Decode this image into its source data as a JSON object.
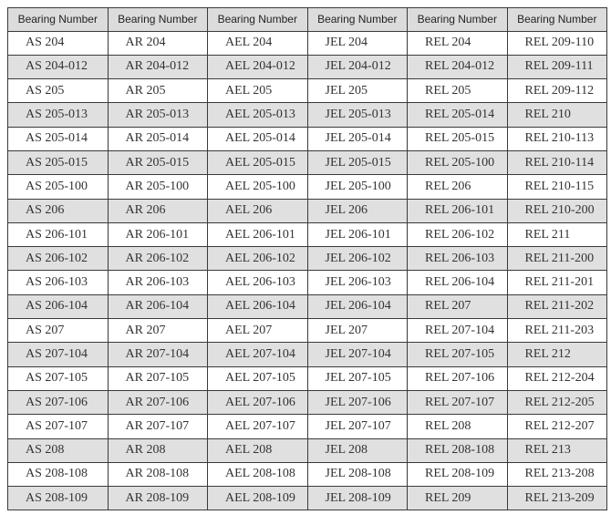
{
  "table": {
    "headers": [
      "Bearing Number",
      "Bearing Number",
      "Bearing Number",
      "Bearing Number",
      "Bearing Number",
      "Bearing Number"
    ],
    "rows": [
      [
        "AS 204",
        "AR 204",
        "AEL 204",
        "JEL 204",
        "REL 204",
        "REL 209-110"
      ],
      [
        "AS 204-012",
        "AR 204-012",
        "AEL 204-012",
        "JEL 204-012",
        "REL 204-012",
        "REL 209-111"
      ],
      [
        "AS 205",
        "AR 205",
        "AEL 205",
        "JEL 205",
        "REL 205",
        "REL 209-112"
      ],
      [
        "AS 205-013",
        "AR 205-013",
        "AEL 205-013",
        "JEL 205-013",
        "REL 205-014",
        "REL 210"
      ],
      [
        "AS 205-014",
        "AR 205-014",
        "AEL 205-014",
        "JEL 205-014",
        "REL 205-015",
        "REL 210-113"
      ],
      [
        "AS 205-015",
        "AR 205-015",
        "AEL 205-015",
        "JEL 205-015",
        "REL 205-100",
        "REL 210-114"
      ],
      [
        "AS 205-100",
        "AR 205-100",
        "AEL 205-100",
        "JEL 205-100",
        "REL 206",
        "REL 210-115"
      ],
      [
        "AS 206",
        "AR 206",
        "AEL 206",
        "JEL 206",
        "REL 206-101",
        "REL 210-200"
      ],
      [
        "AS 206-101",
        "AR 206-101",
        "AEL 206-101",
        "JEL 206-101",
        "REL 206-102",
        "REL 211"
      ],
      [
        "AS 206-102",
        "AR 206-102",
        "AEL 206-102",
        "JEL 206-102",
        "REL 206-103",
        "REL 211-200"
      ],
      [
        "AS 206-103",
        "AR 206-103",
        "AEL 206-103",
        "JEL 206-103",
        "REL 206-104",
        "REL 211-201"
      ],
      [
        "AS 206-104",
        "AR 206-104",
        "AEL 206-104",
        "JEL 206-104",
        "REL 207",
        "REL 211-202"
      ],
      [
        "AS 207",
        "AR 207",
        "AEL 207",
        "JEL 207",
        "REL 207-104",
        "REL 211-203"
      ],
      [
        "AS 207-104",
        "AR 207-104",
        "AEL 207-104",
        "JEL 207-104",
        "REL 207-105",
        "REL 212"
      ],
      [
        "AS 207-105",
        "AR 207-105",
        "AEL 207-105",
        "JEL 207-105",
        "REL 207-106",
        "REL 212-204"
      ],
      [
        "AS 207-106",
        "AR 207-106",
        "AEL 207-106",
        "JEL 207-106",
        "REL 207-107",
        "REL 212-205"
      ],
      [
        "AS 207-107",
        "AR 207-107",
        "AEL 207-107",
        "JEL 207-107",
        "REL 208",
        "REL 212-207"
      ],
      [
        "AS 208",
        "AR 208",
        "AEL 208",
        "JEL 208",
        "REL 208-108",
        "REL 213"
      ],
      [
        "AS 208-108",
        "AR 208-108",
        "AEL 208-108",
        "JEL 208-108",
        "REL 208-109",
        "REL 213-208"
      ],
      [
        "AS 208-109",
        "AR 208-109",
        "AEL 208-109",
        "JEL 208-109",
        "REL 209",
        "REL 213-209"
      ]
    ]
  },
  "colors": {
    "header_bg": "#dcdcdc",
    "alt_row_bg": "#e0e0e0",
    "border": "#3a3a3a"
  }
}
